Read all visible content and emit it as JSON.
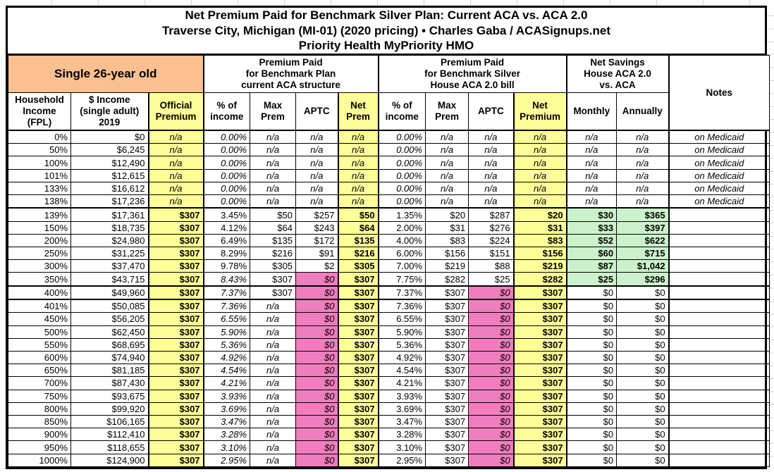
{
  "title": {
    "line1": "Net Premium Paid for Benchmark Silver Plan: Current ACA vs. ACA 2.0",
    "line2": "Traverse City, Michigan (MI-01) (2020 pricing) • Charles Gaba / ACASignups.net",
    "line3": "Priority Health MyPriority HMO"
  },
  "header": {
    "subject": "Single 26-year old",
    "group_current_aca": "Premium Paid\nfor Benchmark Plan\ncurrent ACA structure",
    "group_aca2": "Premium Paid\nfor Benchmark Silver\nHouse ACA 2.0 bill",
    "group_savings": "Net Savings\nHouse ACA 2.0\nvs. ACA",
    "notes": "Notes",
    "columns": [
      "Household\nIncome\n(FPL)",
      "$ Income\n(single adult)\n2019",
      "Official\nPremium",
      "% of\nincome",
      "Max\nPrem",
      "APTC",
      "Net\nPrem",
      "% of\nincome",
      "Max\nPrem",
      "APTC",
      "Net\nPremium",
      "Monthly",
      "Annually"
    ]
  },
  "colors": {
    "subject_bg": "#FAC090",
    "highlight_yellow": "#FFFF99",
    "zero_aptc_pink": "#F07EBE",
    "savings_green": "#CCF2CC",
    "border": "#000000"
  },
  "dividers_after": [
    "138%",
    "350%",
    "400%"
  ],
  "rows": [
    {
      "fpl": "0%",
      "income": "$0",
      "official": "n/a",
      "aca_pct": "0.00%",
      "aca_max": "n/a",
      "aca_aptc": "n/a",
      "aca_net": "n/a",
      "aca2_pct": "0.00%",
      "aca2_max": "n/a",
      "aca2_aptc": "n/a",
      "aca2_net": "n/a",
      "monthly": "n/a",
      "annually": "n/a",
      "note": "on Medicaid"
    },
    {
      "fpl": "50%",
      "income": "$6,245",
      "official": "n/a",
      "aca_pct": "0.00%",
      "aca_max": "n/a",
      "aca_aptc": "n/a",
      "aca_net": "n/a",
      "aca2_pct": "0.00%",
      "aca2_max": "n/a",
      "aca2_aptc": "n/a",
      "aca2_net": "n/a",
      "monthly": "n/a",
      "annually": "n/a",
      "note": "on Medicaid"
    },
    {
      "fpl": "100%",
      "income": "$12,490",
      "official": "n/a",
      "aca_pct": "0.00%",
      "aca_max": "n/a",
      "aca_aptc": "n/a",
      "aca_net": "n/a",
      "aca2_pct": "0.00%",
      "aca2_max": "n/a",
      "aca2_aptc": "n/a",
      "aca2_net": "n/a",
      "monthly": "n/a",
      "annually": "n/a",
      "note": "on Medicaid"
    },
    {
      "fpl": "101%",
      "income": "$12,615",
      "official": "n/a",
      "aca_pct": "0.00%",
      "aca_max": "n/a",
      "aca_aptc": "n/a",
      "aca_net": "n/a",
      "aca2_pct": "0.00%",
      "aca2_max": "n/a",
      "aca2_aptc": "n/a",
      "aca2_net": "n/a",
      "monthly": "n/a",
      "annually": "n/a",
      "note": "on Medicaid"
    },
    {
      "fpl": "133%",
      "income": "$16,612",
      "official": "n/a",
      "aca_pct": "0.00%",
      "aca_max": "n/a",
      "aca_aptc": "n/a",
      "aca_net": "n/a",
      "aca2_pct": "0.00%",
      "aca2_max": "n/a",
      "aca2_aptc": "n/a",
      "aca2_net": "n/a",
      "monthly": "n/a",
      "annually": "n/a",
      "note": "on Medicaid"
    },
    {
      "fpl": "138%",
      "income": "$17,236",
      "official": "n/a",
      "aca_pct": "0.00%",
      "aca_max": "n/a",
      "aca_aptc": "n/a",
      "aca_net": "n/a",
      "aca2_pct": "0.00%",
      "aca2_max": "n/a",
      "aca2_aptc": "n/a",
      "aca2_net": "n/a",
      "monthly": "n/a",
      "annually": "n/a",
      "note": "on Medicaid"
    },
    {
      "fpl": "139%",
      "income": "$17,361",
      "official": "$307",
      "aca_pct": "3.45%",
      "aca_max": "$50",
      "aca_aptc": "$257",
      "aca_net": "$50",
      "aca2_pct": "1.35%",
      "aca2_max": "$20",
      "aca2_aptc": "$287",
      "aca2_net": "$20",
      "monthly": "$30",
      "annually": "$365",
      "note": ""
    },
    {
      "fpl": "150%",
      "income": "$18,735",
      "official": "$307",
      "aca_pct": "4.12%",
      "aca_max": "$64",
      "aca_aptc": "$243",
      "aca_net": "$64",
      "aca2_pct": "2.00%",
      "aca2_max": "$31",
      "aca2_aptc": "$276",
      "aca2_net": "$31",
      "monthly": "$33",
      "annually": "$397",
      "note": ""
    },
    {
      "fpl": "200%",
      "income": "$24,980",
      "official": "$307",
      "aca_pct": "6.49%",
      "aca_max": "$135",
      "aca_aptc": "$172",
      "aca_net": "$135",
      "aca2_pct": "4.00%",
      "aca2_max": "$83",
      "aca2_aptc": "$224",
      "aca2_net": "$83",
      "monthly": "$52",
      "annually": "$622",
      "note": ""
    },
    {
      "fpl": "250%",
      "income": "$31,225",
      "official": "$307",
      "aca_pct": "8.29%",
      "aca_max": "$216",
      "aca_aptc": "$91",
      "aca_net": "$216",
      "aca2_pct": "6.00%",
      "aca2_max": "$156",
      "aca2_aptc": "$151",
      "aca2_net": "$156",
      "monthly": "$60",
      "annually": "$715",
      "note": ""
    },
    {
      "fpl": "300%",
      "income": "$37,470",
      "official": "$307",
      "aca_pct": "9.78%",
      "aca_max": "$305",
      "aca_aptc": "$2",
      "aca_net": "$305",
      "aca2_pct": "7.00%",
      "aca2_max": "$219",
      "aca2_aptc": "$88",
      "aca2_net": "$219",
      "monthly": "$87",
      "annually": "$1,042",
      "note": ""
    },
    {
      "fpl": "350%",
      "income": "$43,715",
      "official": "$307",
      "aca_pct": "8.43%",
      "aca_max": "$307",
      "aca_aptc": "$0",
      "aca_net": "$307",
      "aca2_pct": "7.75%",
      "aca2_max": "$282",
      "aca2_aptc": "$25",
      "aca2_net": "$282",
      "monthly": "$25",
      "annually": "$296",
      "note": ""
    },
    {
      "fpl": "400%",
      "income": "$49,960",
      "official": "$307",
      "aca_pct": "7.37%",
      "aca_max": "$307",
      "aca_aptc": "$0",
      "aca_net": "$307",
      "aca2_pct": "7.37%",
      "aca2_max": "$307",
      "aca2_aptc": "$0",
      "aca2_net": "$307",
      "monthly": "$0",
      "annually": "$0",
      "note": ""
    },
    {
      "fpl": "401%",
      "income": "$50,085",
      "official": "$307",
      "aca_pct": "7.36%",
      "aca_max": "n/a",
      "aca_aptc": "$0",
      "aca_net": "$307",
      "aca2_pct": "7.36%",
      "aca2_max": "$307",
      "aca2_aptc": "$0",
      "aca2_net": "$307",
      "monthly": "$0",
      "annually": "$0",
      "note": ""
    },
    {
      "fpl": "450%",
      "income": "$56,205",
      "official": "$307",
      "aca_pct": "6.55%",
      "aca_max": "n/a",
      "aca_aptc": "$0",
      "aca_net": "$307",
      "aca2_pct": "6.55%",
      "aca2_max": "$307",
      "aca2_aptc": "$0",
      "aca2_net": "$307",
      "monthly": "$0",
      "annually": "$0",
      "note": ""
    },
    {
      "fpl": "500%",
      "income": "$62,450",
      "official": "$307",
      "aca_pct": "5.90%",
      "aca_max": "n/a",
      "aca_aptc": "$0",
      "aca_net": "$307",
      "aca2_pct": "5.90%",
      "aca2_max": "$307",
      "aca2_aptc": "$0",
      "aca2_net": "$307",
      "monthly": "$0",
      "annually": "$0",
      "note": ""
    },
    {
      "fpl": "550%",
      "income": "$68,695",
      "official": "$307",
      "aca_pct": "5.36%",
      "aca_max": "n/a",
      "aca_aptc": "$0",
      "aca_net": "$307",
      "aca2_pct": "5.36%",
      "aca2_max": "$307",
      "aca2_aptc": "$0",
      "aca2_net": "$307",
      "monthly": "$0",
      "annually": "$0",
      "note": ""
    },
    {
      "fpl": "600%",
      "income": "$74,940",
      "official": "$307",
      "aca_pct": "4.92%",
      "aca_max": "n/a",
      "aca_aptc": "$0",
      "aca_net": "$307",
      "aca2_pct": "4.92%",
      "aca2_max": "$307",
      "aca2_aptc": "$0",
      "aca2_net": "$307",
      "monthly": "$0",
      "annually": "$0",
      "note": ""
    },
    {
      "fpl": "650%",
      "income": "$81,185",
      "official": "$307",
      "aca_pct": "4.54%",
      "aca_max": "n/a",
      "aca_aptc": "$0",
      "aca_net": "$307",
      "aca2_pct": "4.54%",
      "aca2_max": "$307",
      "aca2_aptc": "$0",
      "aca2_net": "$307",
      "monthly": "$0",
      "annually": "$0",
      "note": ""
    },
    {
      "fpl": "700%",
      "income": "$87,430",
      "official": "$307",
      "aca_pct": "4.21%",
      "aca_max": "n/a",
      "aca_aptc": "$0",
      "aca_net": "$307",
      "aca2_pct": "4.21%",
      "aca2_max": "$307",
      "aca2_aptc": "$0",
      "aca2_net": "$307",
      "monthly": "$0",
      "annually": "$0",
      "note": ""
    },
    {
      "fpl": "750%",
      "income": "$93,675",
      "official": "$307",
      "aca_pct": "3.93%",
      "aca_max": "n/a",
      "aca_aptc": "$0",
      "aca_net": "$307",
      "aca2_pct": "3.93%",
      "aca2_max": "$307",
      "aca2_aptc": "$0",
      "aca2_net": "$307",
      "monthly": "$0",
      "annually": "$0",
      "note": ""
    },
    {
      "fpl": "800%",
      "income": "$99,920",
      "official": "$307",
      "aca_pct": "3.69%",
      "aca_max": "n/a",
      "aca_aptc": "$0",
      "aca_net": "$307",
      "aca2_pct": "3.69%",
      "aca2_max": "$307",
      "aca2_aptc": "$0",
      "aca2_net": "$307",
      "monthly": "$0",
      "annually": "$0",
      "note": ""
    },
    {
      "fpl": "850%",
      "income": "$106,165",
      "official": "$307",
      "aca_pct": "3.47%",
      "aca_max": "n/a",
      "aca_aptc": "$0",
      "aca_net": "$307",
      "aca2_pct": "3.47%",
      "aca2_max": "$307",
      "aca2_aptc": "$0",
      "aca2_net": "$307",
      "monthly": "$0",
      "annually": "$0",
      "note": ""
    },
    {
      "fpl": "900%",
      "income": "$112,410",
      "official": "$307",
      "aca_pct": "3.28%",
      "aca_max": "n/a",
      "aca_aptc": "$0",
      "aca_net": "$307",
      "aca2_pct": "3.28%",
      "aca2_max": "$307",
      "aca2_aptc": "$0",
      "aca2_net": "$307",
      "monthly": "$0",
      "annually": "$0",
      "note": ""
    },
    {
      "fpl": "950%",
      "income": "$118,655",
      "official": "$307",
      "aca_pct": "3.10%",
      "aca_max": "n/a",
      "aca_aptc": "$0",
      "aca_net": "$307",
      "aca2_pct": "3.10%",
      "aca2_max": "$307",
      "aca2_aptc": "$0",
      "aca2_net": "$307",
      "monthly": "$0",
      "annually": "$0",
      "note": ""
    },
    {
      "fpl": "1000%",
      "income": "$124,900",
      "official": "$307",
      "aca_pct": "2.95%",
      "aca_max": "n/a",
      "aca_aptc": "$0",
      "aca_net": "$307",
      "aca2_pct": "2.95%",
      "aca2_max": "$307",
      "aca2_aptc": "$0",
      "aca2_net": "$307",
      "monthly": "$0",
      "annually": "$0",
      "note": ""
    }
  ]
}
